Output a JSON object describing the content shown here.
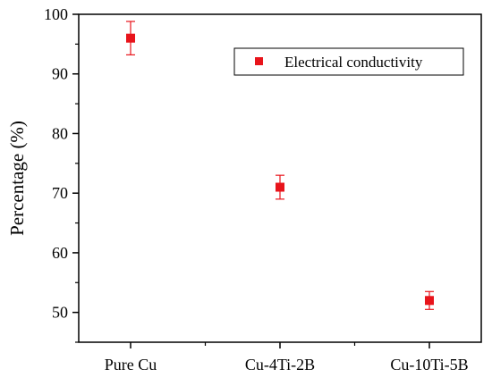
{
  "chart_data": {
    "type": "scatter",
    "title": "",
    "xlabel": "",
    "ylabel": "Percentage (%)",
    "categories": [
      "Pure Cu",
      "Cu-4Ti-2B",
      "Cu-10Ti-5B"
    ],
    "ylim": [
      45,
      100
    ],
    "yticks": [
      50,
      60,
      70,
      80,
      90,
      100
    ],
    "grid": false,
    "legend_position": "top-right",
    "series": [
      {
        "name": "Electrical conductivity",
        "color": "#e8141b",
        "marker": "square",
        "values": [
          96,
          71,
          52
        ],
        "error_low": [
          93.2,
          69,
          50.5
        ],
        "error_high": [
          98.8,
          73,
          53.5
        ]
      }
    ]
  }
}
